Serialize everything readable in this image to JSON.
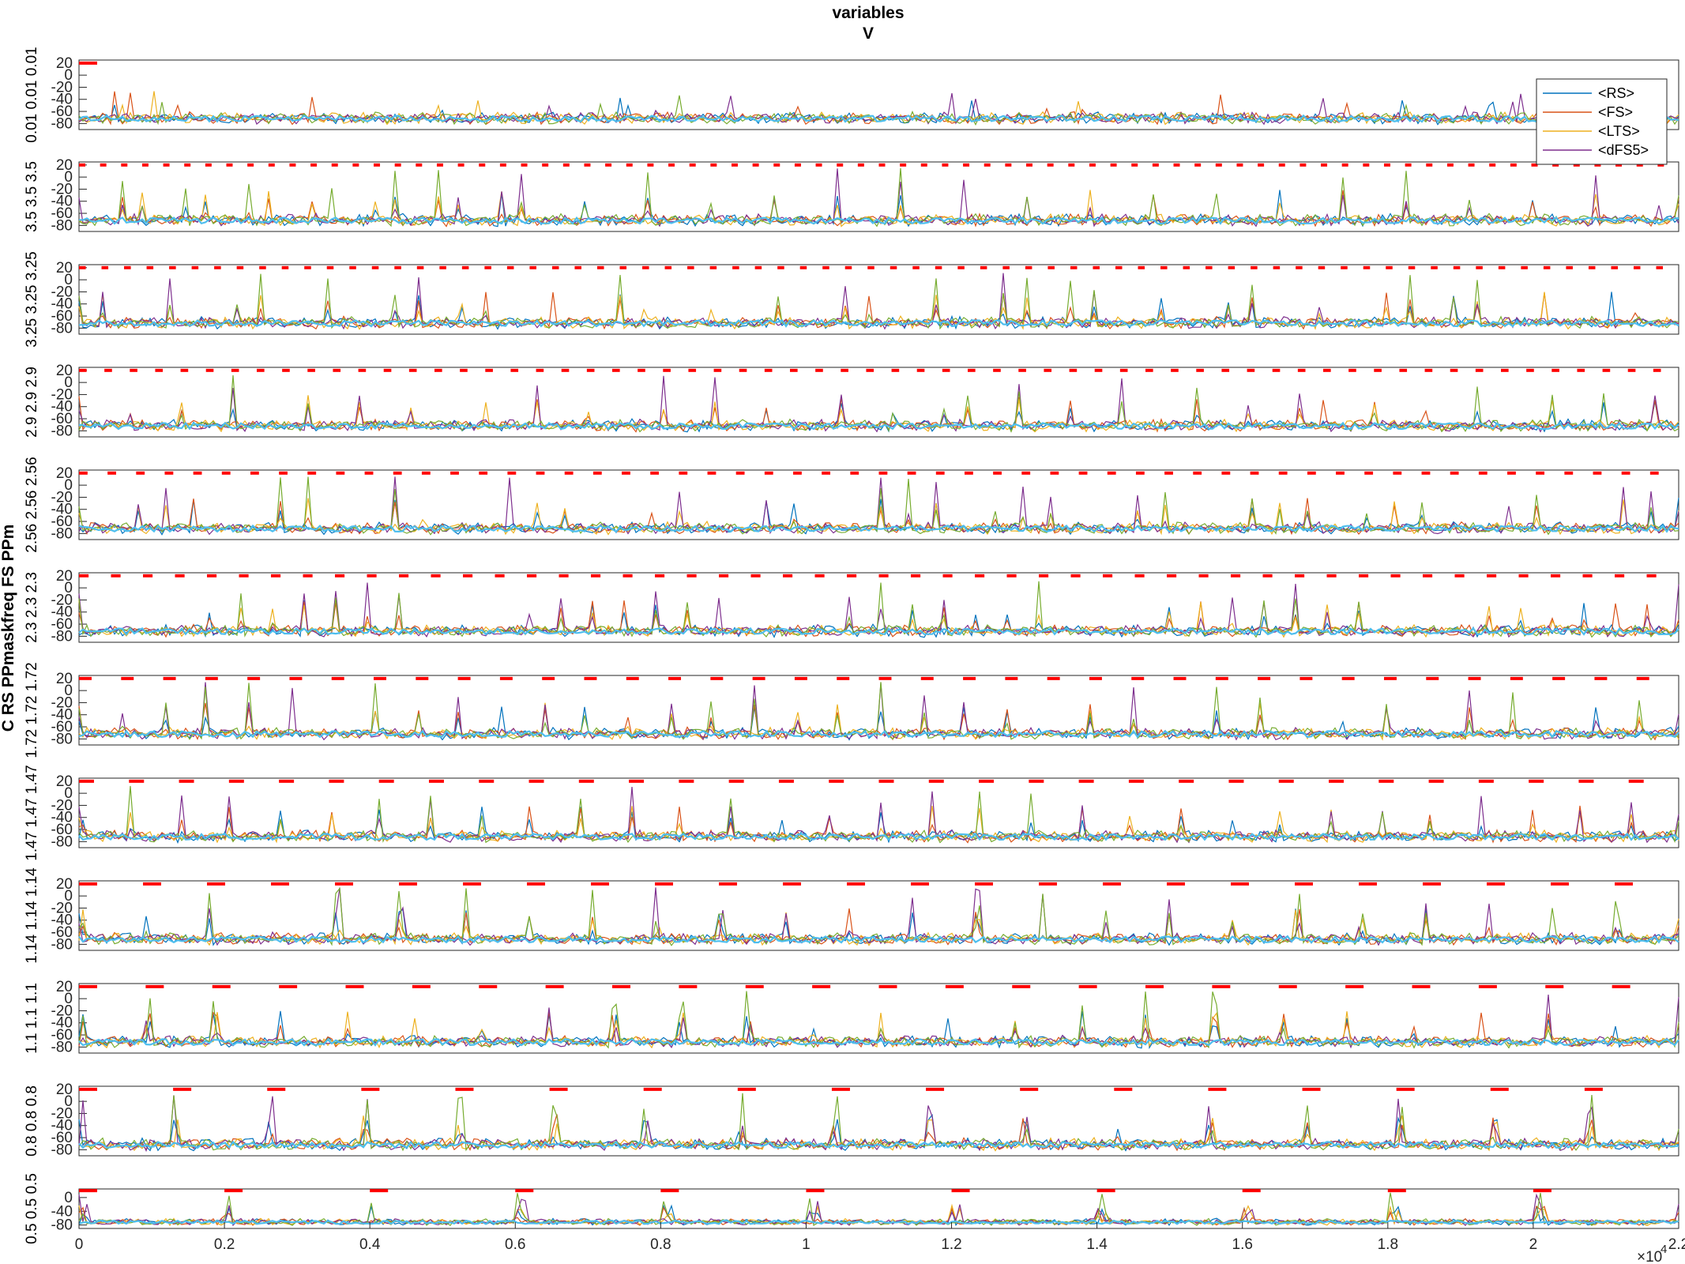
{
  "title": "variables",
  "subtitle": "V",
  "ylabel_left": "C RS PPmaskfreq FS PPm",
  "row_labels": [
    "0.01 0.01 0.01",
    "3.5 3.5 3.5",
    "3.25 3.25 3.25",
    "2.9 2.9 2.9",
    "2.56 2.56 2.56",
    "2.3 2.3 2.3",
    "1.72 1.72 1.72",
    "1.47 1.47 1.47",
    "1.14 1.14 1.14",
    "1.1 1.1 1.1",
    "0.8 0.8 0.8",
    "0.5 0.5 0.5"
  ],
  "legend": {
    "entries": [
      "<RS>",
      "<FS>",
      "<LTS>",
      "<dFS5>"
    ]
  },
  "colors": {
    "RS": "#0072BD",
    "FS": "#D95319",
    "LTS": "#EDB120",
    "dFS5": "#7E2F8E",
    "green": "#77AC30",
    "cyan": "#4DBEEE",
    "pulse": "#FF0000"
  },
  "x_exponent_label": "×10",
  "x_exponent_power": "4",
  "chart_data": {
    "type": "line",
    "title": "variables",
    "subtitle": "V",
    "x_ticks": [
      "0",
      "0.2",
      "0.4",
      "0.6",
      "0.8",
      "1",
      "1.2",
      "1.4",
      "1.6",
      "1.8",
      "2",
      "2.2"
    ],
    "x_tick_values": [
      0,
      2000,
      4000,
      6000,
      8000,
      10000,
      12000,
      14000,
      16000,
      18000,
      20000,
      22000
    ],
    "xlim": [
      0,
      22000
    ],
    "ylim": [
      -90,
      25
    ],
    "y_ticks": [
      "20",
      "0",
      "-20",
      "-40",
      "-60",
      "-80"
    ],
    "y_ticks_last_panel": [
      "0",
      "-40",
      "-80"
    ],
    "series": [
      {
        "name": "<RS>"
      },
      {
        "name": "<FS>"
      },
      {
        "name": "<LTS>"
      },
      {
        "name": "<dFS5>"
      }
    ],
    "panels": [
      {
        "pulse_freq_hz": 0.01,
        "pulses": 1
      },
      {
        "pulse_freq_hz": 3.5,
        "pulses": 76
      },
      {
        "pulse_freq_hz": 3.25,
        "pulses": 71
      },
      {
        "pulse_freq_hz": 2.9,
        "pulses": 63
      },
      {
        "pulse_freq_hz": 2.56,
        "pulses": 56
      },
      {
        "pulse_freq_hz": 2.3,
        "pulses": 50
      },
      {
        "pulse_freq_hz": 1.72,
        "pulses": 38
      },
      {
        "pulse_freq_hz": 1.47,
        "pulses": 32
      },
      {
        "pulse_freq_hz": 1.14,
        "pulses": 25
      },
      {
        "pulse_freq_hz": 1.1,
        "pulses": 24
      },
      {
        "pulse_freq_hz": 0.8,
        "pulses": 17
      },
      {
        "pulse_freq_hz": 0.5,
        "pulses": 11
      }
    ]
  }
}
